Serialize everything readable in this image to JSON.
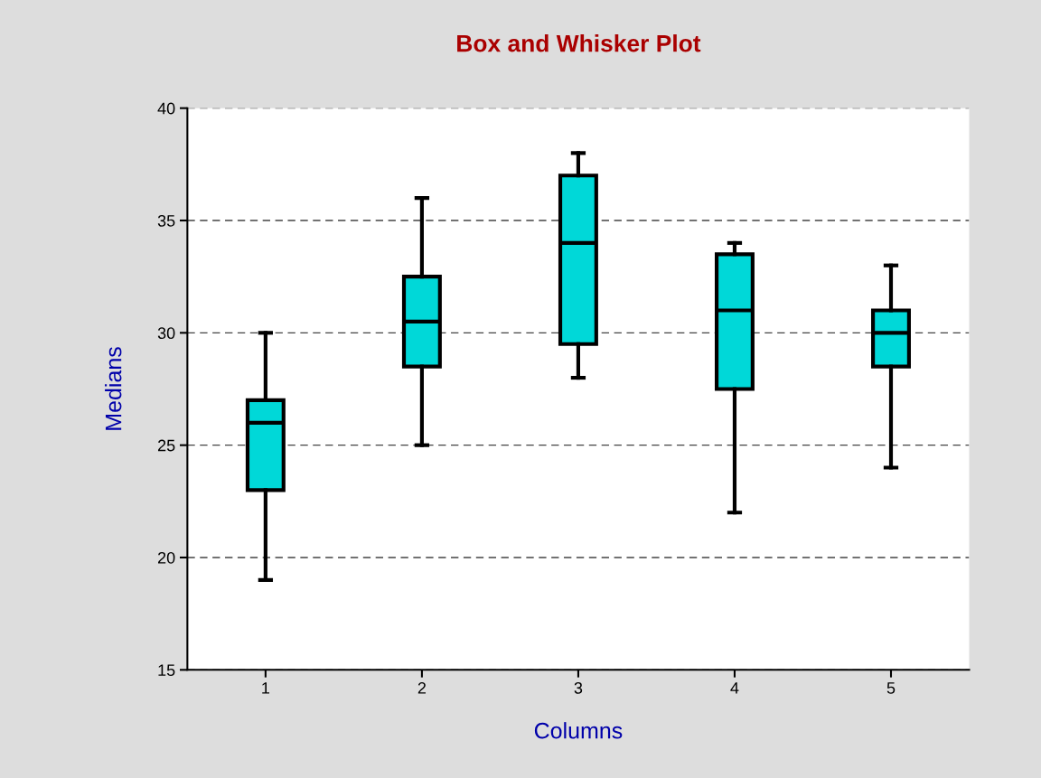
{
  "chart_data": {
    "type": "box",
    "title": "Box and Whisker Plot",
    "xlabel": "Columns",
    "ylabel": "Medians",
    "categories": [
      "1",
      "2",
      "3",
      "4",
      "5"
    ],
    "series": [
      {
        "color": "#00d8d8",
        "boxes": [
          {
            "low": 19,
            "q1": 23,
            "median": 26,
            "q3": 27,
            "high": 30
          },
          {
            "low": 25,
            "q1": 28.5,
            "median": 30.5,
            "q3": 32.5,
            "high": 36
          },
          {
            "low": 28,
            "q1": 29.5,
            "median": 34,
            "q3": 37,
            "high": 38
          },
          {
            "low": 22,
            "q1": 27.5,
            "median": 31,
            "q3": 33.5,
            "high": 34
          },
          {
            "low": 24,
            "q1": 28.5,
            "median": 30,
            "q3": 31,
            "high": 33
          }
        ]
      }
    ],
    "ylim": [
      15,
      40
    ],
    "yticks": [
      15,
      20,
      25,
      30,
      35,
      40
    ],
    "grid": "y"
  }
}
